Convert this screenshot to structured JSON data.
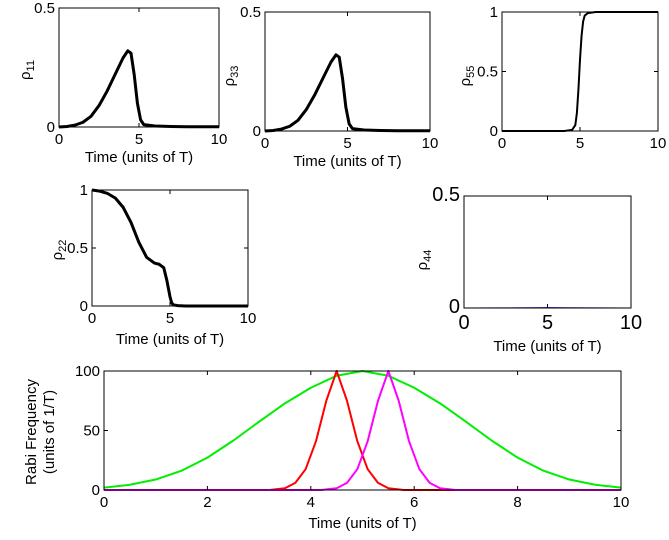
{
  "chart_data": [
    {
      "id": "rho11",
      "type": "line",
      "ylabel_base": "ρ",
      "ylabel_sub": "11",
      "xlabel": "Time (units of T)",
      "xlim": [
        0,
        10
      ],
      "ylim": [
        0,
        0.5
      ],
      "xticks": [
        0,
        5,
        10
      ],
      "yticks": [
        0,
        0.5
      ],
      "xtick_labels": [
        "0",
        "5",
        "10"
      ],
      "ytick_labels": [
        "0",
        "0.5"
      ],
      "series": [
        {
          "color": "#000000",
          "width": 3,
          "x": [
            0,
            0.5,
            1,
            1.5,
            2,
            2.5,
            3,
            3.5,
            4,
            4.3,
            4.5,
            4.7,
            4.9,
            5.1,
            5.3,
            6,
            7,
            8,
            9,
            10
          ],
          "y": [
            0,
            0.002,
            0.008,
            0.02,
            0.045,
            0.09,
            0.15,
            0.22,
            0.29,
            0.32,
            0.31,
            0.22,
            0.1,
            0.03,
            0.01,
            0.004,
            0.002,
            0.001,
            0.001,
            0.001
          ]
        }
      ]
    },
    {
      "id": "rho33",
      "type": "line",
      "ylabel_base": "ρ",
      "ylabel_sub": "33",
      "xlabel": "Time (units of T)",
      "xlim": [
        0,
        10
      ],
      "ylim": [
        0,
        0.5
      ],
      "xticks": [
        0,
        5,
        10
      ],
      "yticks": [
        0,
        0.5
      ],
      "xtick_labels": [
        "0",
        "5",
        "10"
      ],
      "ytick_labels": [
        "0",
        "0.5"
      ],
      "series": [
        {
          "color": "#000000",
          "width": 3,
          "x": [
            0,
            0.5,
            1,
            1.5,
            2,
            2.5,
            3,
            3.5,
            4,
            4.3,
            4.5,
            4.7,
            4.9,
            5.1,
            5.3,
            6,
            7,
            8,
            9,
            10
          ],
          "y": [
            0,
            0.002,
            0.008,
            0.02,
            0.045,
            0.09,
            0.15,
            0.22,
            0.29,
            0.32,
            0.31,
            0.22,
            0.1,
            0.03,
            0.01,
            0.004,
            0.002,
            0.001,
            0.001,
            0.001
          ]
        }
      ]
    },
    {
      "id": "rho55",
      "type": "line",
      "ylabel_base": "ρ",
      "ylabel_sub": "55",
      "xlabel": "",
      "xlim": [
        0,
        10
      ],
      "ylim": [
        0,
        1
      ],
      "xticks": [
        0,
        5,
        10
      ],
      "yticks": [
        0,
        0.5,
        1
      ],
      "xtick_labels": [
        "0",
        "5",
        "10"
      ],
      "ytick_labels": [
        "0",
        "0.5",
        "1"
      ],
      "series": [
        {
          "color": "#000000",
          "width": 2,
          "x": [
            0,
            4,
            4.5,
            4.7,
            4.8,
            4.9,
            5.0,
            5.1,
            5.2,
            5.3,
            5.5,
            6,
            10
          ],
          "y": [
            0,
            0,
            0.01,
            0.05,
            0.15,
            0.35,
            0.6,
            0.8,
            0.92,
            0.97,
            0.99,
            1,
            1
          ]
        }
      ]
    },
    {
      "id": "rho22",
      "type": "line",
      "ylabel_base": "ρ",
      "ylabel_sub": "22",
      "xlabel": "Time (units of T)",
      "xlim": [
        0,
        10
      ],
      "ylim": [
        0,
        1
      ],
      "xticks": [
        0,
        5,
        10
      ],
      "yticks": [
        0,
        0.5,
        1
      ],
      "xtick_labels": [
        "0",
        "5",
        "10"
      ],
      "ytick_labels": [
        "0",
        "0.5",
        "1"
      ],
      "series": [
        {
          "color": "#000000",
          "width": 3,
          "x": [
            0,
            0.5,
            1,
            1.5,
            2,
            2.5,
            3,
            3.5,
            4,
            4.3,
            4.6,
            4.8,
            5.0,
            5.1,
            5.2,
            5.5,
            6,
            10
          ],
          "y": [
            1,
            0.99,
            0.97,
            0.93,
            0.85,
            0.72,
            0.55,
            0.42,
            0.37,
            0.36,
            0.33,
            0.22,
            0.08,
            0.03,
            0.01,
            0.003,
            0,
            0
          ]
        }
      ]
    },
    {
      "id": "rho44",
      "type": "line",
      "ylabel_base": "ρ",
      "ylabel_sub": "44",
      "xlabel": "Time (units of T)",
      "xlim": [
        0,
        10
      ],
      "ylim": [
        0,
        0.5
      ],
      "xticks": [
        0,
        5,
        10
      ],
      "yticks": [
        0,
        0.5
      ],
      "xtick_labels": [
        "0",
        "5",
        "10"
      ],
      "ytick_labels": [
        "0",
        "0.5"
      ],
      "series": [
        {
          "color": "#0000ff",
          "width": 1,
          "x": [
            0,
            2,
            4,
            5,
            6,
            8,
            10
          ],
          "y": [
            0,
            0.0005,
            0.001,
            0.0015,
            0.001,
            0.0005,
            0
          ]
        }
      ]
    },
    {
      "id": "rabi",
      "type": "line",
      "ylabel_line1": "Rabi Frequency",
      "ylabel_line2": "(units of 1/T)",
      "xlabel": "Time (units of T)",
      "xlim": [
        0,
        10
      ],
      "ylim": [
        0,
        100
      ],
      "xticks": [
        0,
        2,
        4,
        6,
        8,
        10
      ],
      "yticks": [
        0,
        50,
        100
      ],
      "xtick_labels": [
        "0",
        "2",
        "4",
        "6",
        "8",
        "10"
      ],
      "ytick_labels": [
        "0",
        "50",
        "100"
      ],
      "series": [
        {
          "color": "#00ee00",
          "width": 2,
          "x": [
            0,
            0.5,
            1,
            1.5,
            2,
            2.5,
            3,
            3.5,
            4,
            4.5,
            5,
            5.5,
            6,
            6.5,
            7,
            7.5,
            8,
            8.5,
            9,
            9.5,
            10
          ],
          "y": [
            2,
            4.4,
            8.8,
            16.2,
            27.2,
            41.5,
            57.4,
            72.8,
            85.9,
            96,
            100,
            96,
            85.9,
            72.8,
            57.4,
            41.5,
            27.2,
            16.2,
            8.8,
            4.4,
            2
          ]
        },
        {
          "color": "#ff0000",
          "width": 2,
          "x": [
            0,
            3.2,
            3.5,
            3.7,
            3.9,
            4.1,
            4.3,
            4.5,
            4.7,
            4.9,
            5.1,
            5.3,
            5.5,
            5.8,
            10
          ],
          "y": [
            0,
            0,
            1.5,
            6,
            17.5,
            41,
            75,
            100,
            75,
            41,
            17.5,
            6,
            1.5,
            0,
            0
          ]
        },
        {
          "color": "#ff00ff",
          "width": 2,
          "x": [
            0,
            4.2,
            4.5,
            4.7,
            4.9,
            5.1,
            5.3,
            5.5,
            5.7,
            5.9,
            6.1,
            6.3,
            6.5,
            6.8,
            10
          ],
          "y": [
            0,
            0,
            1.5,
            6,
            17.5,
            41,
            75,
            100,
            75,
            41,
            17.5,
            6,
            1.5,
            0,
            0
          ]
        }
      ]
    }
  ]
}
